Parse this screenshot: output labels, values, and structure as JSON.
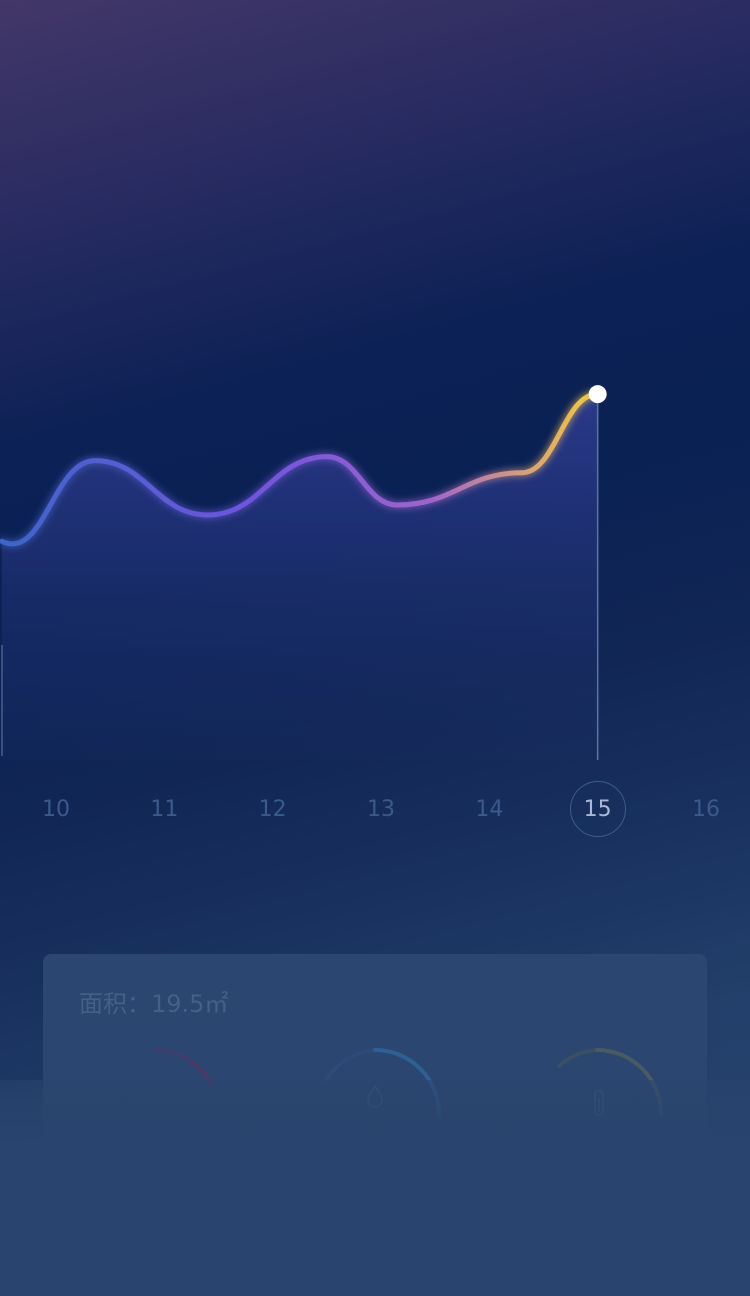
{
  "chart_data": {
    "type": "line",
    "x": [
      9.5,
      10.36,
      11.4,
      12.5,
      13.15,
      14.3,
      15
    ],
    "y": [
      5.9,
      7.9,
      6.55,
      8.0,
      6.8,
      7.6,
      9.55
    ],
    "x_ticks": [
      "10",
      "11",
      "12",
      "13",
      "14",
      "15",
      "16"
    ],
    "selected_x": "15",
    "xlim": [
      9.5,
      16.5
    ],
    "ylim": [
      0,
      12
    ],
    "colors": [
      "#3e66c8",
      "#6f55dc",
      "#a064cc",
      "#f2cc3e"
    ],
    "fill_color": "#2d3a8e",
    "marker_color": "#ffffff"
  },
  "card": {
    "area_label": "面积：19.5㎡",
    "gauges": [
      {
        "name": "gauge-left",
        "color": "#523f6e",
        "icon": "none"
      },
      {
        "name": "gauge-middle",
        "color": "#2f5f94",
        "icon": "drop-icon"
      },
      {
        "name": "gauge-right",
        "color": "#4a5b64",
        "icon": "thermometer-icon"
      }
    ]
  }
}
